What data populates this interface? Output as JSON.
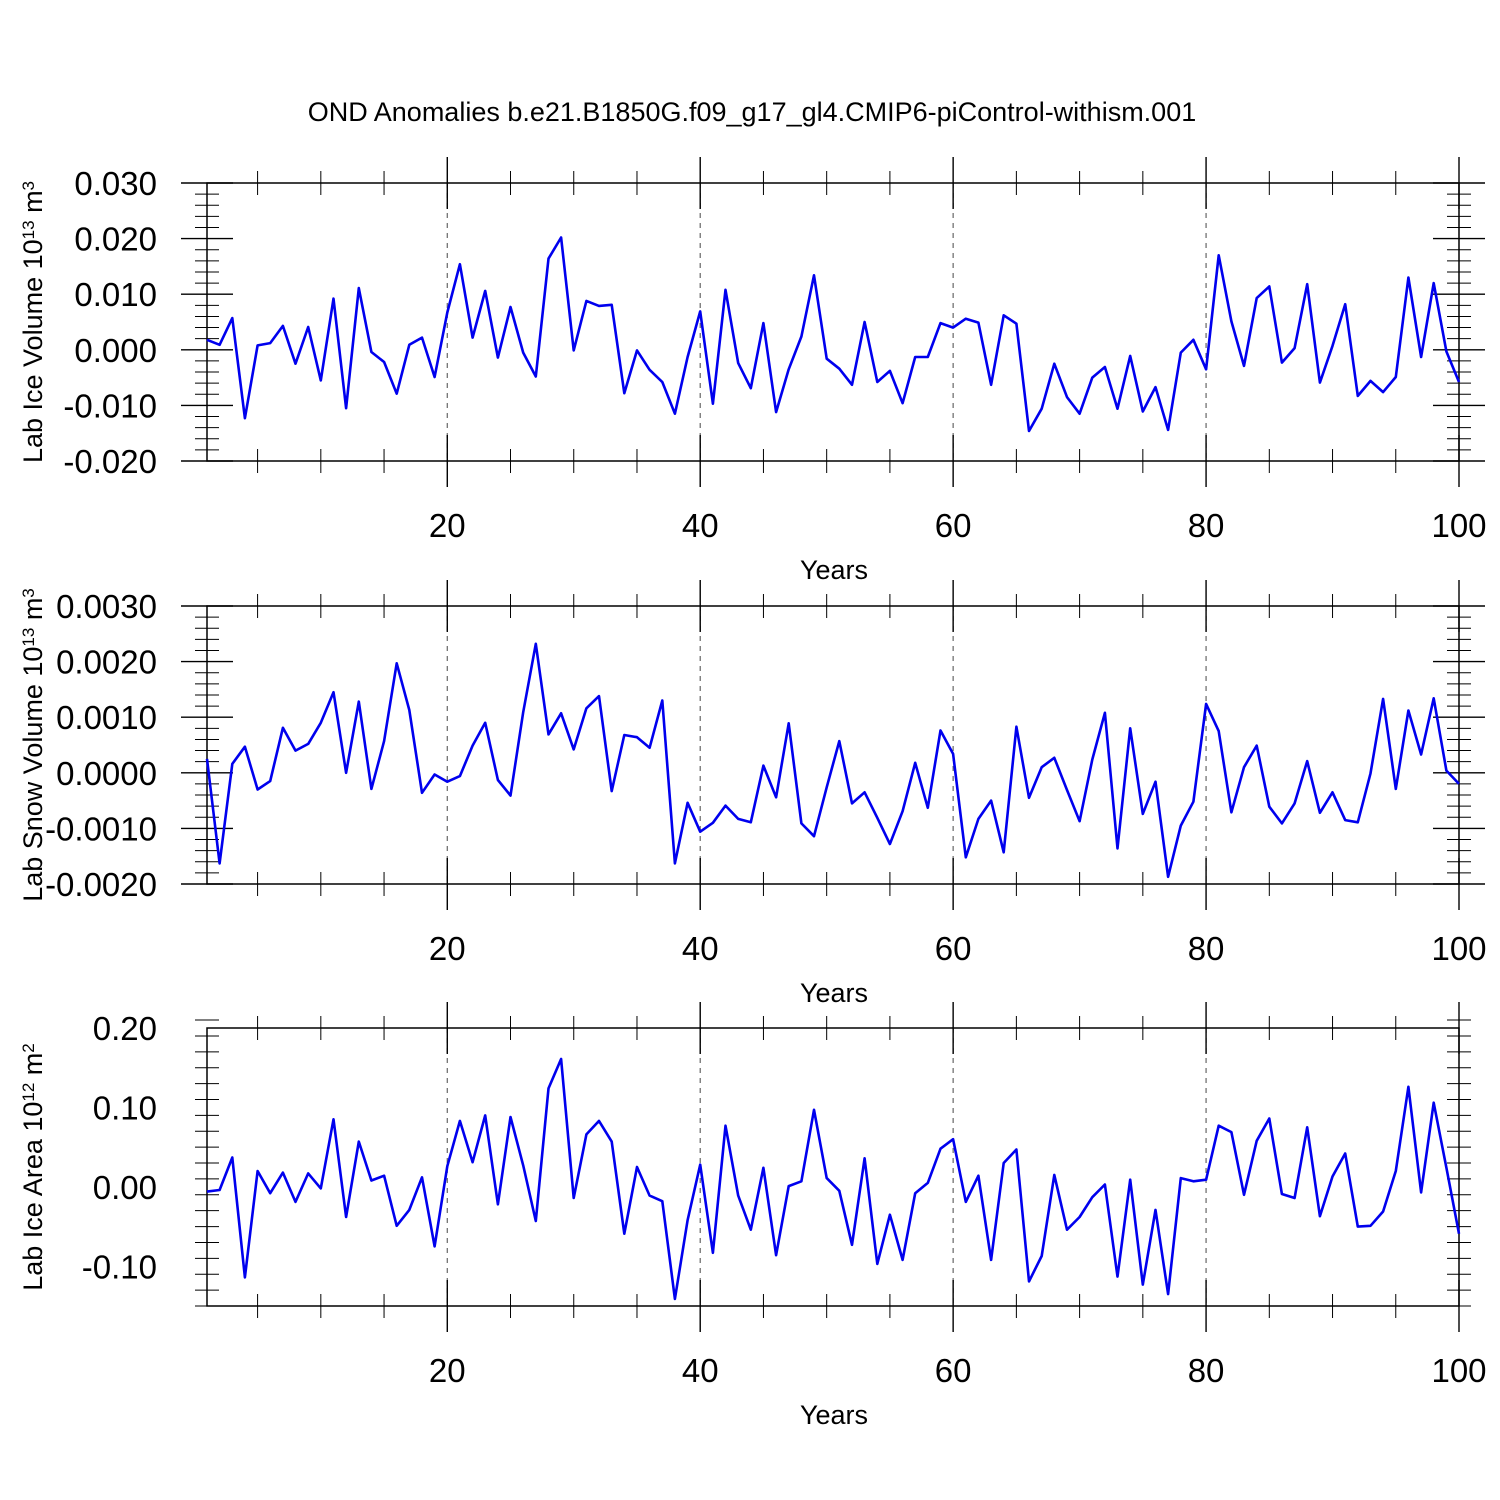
{
  "figure": {
    "title": "OND Anomalies b.e21.B1850G.f09_g17_gl4.CMIP6-piControl-withism.001",
    "line_color": "#0000ee"
  },
  "chart_data": [
    {
      "type": "line",
      "name": "ice-volume",
      "ylabel_main": "Lab Ice Volume 10",
      "ylabel_exp": "13",
      "ylabel_unit": " m",
      "ylabel_unit_exp": "3",
      "xlabel": "Years",
      "xlim": [
        1,
        100
      ],
      "ylim": [
        -0.02,
        0.03
      ],
      "x_ticks": [
        20,
        40,
        60,
        80,
        100
      ],
      "x_tick_labels": [
        "20",
        "40",
        "60",
        "80",
        "100"
      ],
      "y_ticks": [
        -0.02,
        -0.01,
        0.0,
        0.01,
        0.02,
        0.03
      ],
      "y_tick_labels": [
        "-0.020",
        "-0.010",
        "0.000",
        "0.010",
        "0.020",
        "0.030"
      ],
      "y_minor_step": 0.002,
      "x_minor_step": 5,
      "grid_x": [
        20,
        40,
        60,
        80
      ],
      "x": [
        1,
        2,
        3,
        4,
        5,
        6,
        7,
        8,
        9,
        10,
        11,
        12,
        13,
        14,
        15,
        16,
        17,
        18,
        19,
        20,
        21,
        22,
        23,
        24,
        25,
        26,
        27,
        28,
        29,
        30,
        31,
        32,
        33,
        34,
        35,
        36,
        37,
        38,
        39,
        40,
        41,
        42,
        43,
        44,
        45,
        46,
        47,
        48,
        49,
        50,
        51,
        52,
        53,
        54,
        55,
        56,
        57,
        58,
        59,
        60,
        61,
        62,
        63,
        64,
        65,
        66,
        67,
        68,
        69,
        70,
        71,
        72,
        73,
        74,
        75,
        76,
        77,
        78,
        79,
        80,
        81,
        82,
        83,
        84,
        85,
        86,
        87,
        88,
        89,
        90,
        91,
        92,
        93,
        94,
        95,
        96,
        97,
        98,
        99,
        100
      ],
      "values": [
        0.0018,
        0.0009,
        0.0057,
        -0.0123,
        0.0008,
        0.0012,
        0.0043,
        -0.0025,
        0.0041,
        -0.0055,
        0.0092,
        -0.0105,
        0.0111,
        -0.0004,
        -0.0022,
        -0.0079,
        0.0009,
        0.0022,
        -0.0049,
        0.0067,
        0.0154,
        0.0022,
        0.0106,
        -0.0014,
        0.0077,
        -0.0005,
        -0.0048,
        0.0164,
        0.0202,
        -0.0001,
        0.0088,
        0.0079,
        0.0081,
        -0.0078,
        -0.0001,
        -0.0036,
        -0.0058,
        -0.0115,
        -0.0013,
        0.0069,
        -0.0097,
        0.0108,
        -0.0024,
        -0.0069,
        0.0048,
        -0.0112,
        -0.0035,
        0.0024,
        0.0134,
        -0.0016,
        -0.0034,
        -0.0063,
        0.005,
        -0.0058,
        -0.0038,
        -0.0096,
        -0.0013,
        -0.0013,
        0.0048,
        0.004,
        0.0056,
        0.0049,
        -0.0063,
        0.0062,
        0.0047,
        -0.0146,
        -0.0106,
        -0.0025,
        -0.0085,
        -0.0115,
        -0.005,
        -0.0031,
        -0.0106,
        -0.0011,
        -0.0111,
        -0.0067,
        -0.0144,
        -0.0005,
        0.0018,
        -0.0035,
        0.017,
        0.0051,
        -0.0029,
        0.0093,
        0.0114,
        -0.0023,
        0.0003,
        0.0118,
        -0.0059,
        0.0007,
        0.0082,
        -0.0083,
        -0.0056,
        -0.0076,
        -0.0049,
        0.013,
        -0.0013,
        0.012,
        -0.0003,
        -0.0058
      ]
    },
    {
      "type": "line",
      "name": "snow-volume",
      "ylabel_main": "Lab Snow Volume 10",
      "ylabel_exp": "13",
      "ylabel_unit": " m",
      "ylabel_unit_exp": "3",
      "xlabel": "Years",
      "xlim": [
        1,
        100
      ],
      "ylim": [
        -0.002,
        0.003
      ],
      "x_ticks": [
        20,
        40,
        60,
        80,
        100
      ],
      "x_tick_labels": [
        "20",
        "40",
        "60",
        "80",
        "100"
      ],
      "y_ticks": [
        -0.002,
        -0.001,
        0.0,
        0.001,
        0.002,
        0.003
      ],
      "y_tick_labels": [
        "-0.0020",
        "-0.0010",
        "0.0000",
        "0.0010",
        "0.0020",
        "0.0030"
      ],
      "y_minor_step": 0.0002,
      "x_minor_step": 5,
      "grid_x": [
        20,
        40,
        60,
        80
      ],
      "x": [
        1,
        2,
        3,
        4,
        5,
        6,
        7,
        8,
        9,
        10,
        11,
        12,
        13,
        14,
        15,
        16,
        17,
        18,
        19,
        20,
        21,
        22,
        23,
        24,
        25,
        26,
        27,
        28,
        29,
        30,
        31,
        32,
        33,
        34,
        35,
        36,
        37,
        38,
        39,
        40,
        41,
        42,
        43,
        44,
        45,
        46,
        47,
        48,
        49,
        50,
        51,
        52,
        53,
        54,
        55,
        56,
        57,
        58,
        59,
        60,
        61,
        62,
        63,
        64,
        65,
        66,
        67,
        68,
        69,
        70,
        71,
        72,
        73,
        74,
        75,
        76,
        77,
        78,
        79,
        80,
        81,
        82,
        83,
        84,
        85,
        86,
        87,
        88,
        89,
        90,
        91,
        92,
        93,
        94,
        95,
        96,
        97,
        98,
        99,
        100
      ],
      "values": [
        0.00025,
        -0.00163,
        0.00016,
        0.00047,
        -0.0003,
        -0.00015,
        0.00081,
        0.0004,
        0.00052,
        0.0009,
        0.00145,
        0.0,
        0.00128,
        -0.00029,
        0.00057,
        0.00197,
        0.00113,
        -0.00036,
        -3e-05,
        -0.00016,
        -6e-05,
        0.00049,
        0.0009,
        -0.00013,
        -0.00041,
        0.00109,
        0.00232,
        0.00069,
        0.00107,
        0.00042,
        0.00116,
        0.00138,
        -0.00033,
        0.00068,
        0.00064,
        0.00045,
        0.0013,
        -0.00163,
        -0.00054,
        -0.00106,
        -0.0009,
        -0.00059,
        -0.00083,
        -0.00089,
        0.00013,
        -0.00044,
        0.00089,
        -0.00091,
        -0.00114,
        -0.00026,
        0.00057,
        -0.00055,
        -0.00035,
        -0.00081,
        -0.00128,
        -0.00069,
        0.00018,
        -0.00063,
        0.00076,
        0.00034,
        -0.00152,
        -0.00083,
        -0.0005,
        -0.00143,
        0.00083,
        -0.00045,
        0.0001,
        0.00027,
        -0.00031,
        -0.00087,
        0.00024,
        0.00108,
        -0.00136,
        0.0008,
        -0.00074,
        -0.00016,
        -0.00187,
        -0.00095,
        -0.00052,
        0.00124,
        0.00075,
        -0.00071,
        0.0001,
        0.00049,
        -0.00061,
        -0.00091,
        -0.00055,
        0.00021,
        -0.00072,
        -0.00035,
        -0.00085,
        -0.00089,
        -1e-05,
        0.00133,
        -0.00029,
        0.00112,
        0.00033,
        0.00134,
        4e-05,
        -0.0002
      ]
    },
    {
      "type": "line",
      "name": "ice-area",
      "ylabel_main": "Lab Ice Area 10",
      "ylabel_exp": "12",
      "ylabel_unit": " m",
      "ylabel_unit_exp": "2",
      "xlabel": "Years",
      "xlim": [
        1,
        100
      ],
      "ylim": [
        -0.15,
        0.2
      ],
      "x_ticks": [
        20,
        40,
        60,
        80,
        100
      ],
      "x_tick_labels": [
        "20",
        "40",
        "60",
        "80",
        "100"
      ],
      "y_ticks": [
        -0.1,
        0.0,
        0.1,
        0.2
      ],
      "y_tick_labels": [
        "-0.10",
        "0.00",
        "0.10",
        "0.20"
      ],
      "y_minor_step": 0.02,
      "x_minor_step": 5,
      "grid_x": [
        20,
        40,
        60,
        80
      ],
      "x": [
        1,
        2,
        3,
        4,
        5,
        6,
        7,
        8,
        9,
        10,
        11,
        12,
        13,
        14,
        15,
        16,
        17,
        18,
        19,
        20,
        21,
        22,
        23,
        24,
        25,
        26,
        27,
        28,
        29,
        30,
        31,
        32,
        33,
        34,
        35,
        36,
        37,
        38,
        39,
        40,
        41,
        42,
        43,
        44,
        45,
        46,
        47,
        48,
        49,
        50,
        51,
        52,
        53,
        54,
        55,
        56,
        57,
        58,
        59,
        60,
        61,
        62,
        63,
        64,
        65,
        66,
        67,
        68,
        69,
        70,
        71,
        72,
        73,
        74,
        75,
        76,
        77,
        78,
        79,
        80,
        81,
        82,
        83,
        84,
        85,
        86,
        87,
        88,
        89,
        90,
        91,
        92,
        93,
        94,
        95,
        96,
        97,
        98,
        99,
        100
      ],
      "values": [
        -0.006,
        -0.004,
        0.037,
        -0.114,
        0.02,
        -0.008,
        0.018,
        -0.019,
        0.017,
        -0.002,
        0.085,
        -0.038,
        0.057,
        0.008,
        0.014,
        -0.049,
        -0.029,
        0.012,
        -0.075,
        0.026,
        0.083,
        0.031,
        0.09,
        -0.022,
        0.088,
        0.027,
        -0.043,
        0.124,
        0.161,
        -0.014,
        0.066,
        0.083,
        0.057,
        -0.059,
        0.025,
        -0.011,
        -0.018,
        -0.141,
        -0.042,
        0.028,
        -0.083,
        0.077,
        -0.011,
        -0.054,
        0.024,
        -0.086,
        0.001,
        0.007,
        0.097,
        0.011,
        -0.005,
        -0.073,
        0.036,
        -0.097,
        -0.035,
        -0.092,
        -0.008,
        0.005,
        0.048,
        0.06,
        -0.019,
        0.014,
        -0.092,
        0.03,
        0.047,
        -0.119,
        -0.087,
        0.015,
        -0.054,
        -0.038,
        -0.013,
        0.003,
        -0.113,
        0.009,
        -0.123,
        -0.029,
        -0.135,
        0.011,
        0.007,
        0.009,
        0.077,
        0.069,
        -0.01,
        0.058,
        0.086,
        -0.009,
        -0.014,
        0.075,
        -0.037,
        0.013,
        0.042,
        -0.05,
        -0.049,
        -0.031,
        0.02,
        0.126,
        -0.007,
        0.106,
        0.024,
        -0.059
      ]
    }
  ]
}
